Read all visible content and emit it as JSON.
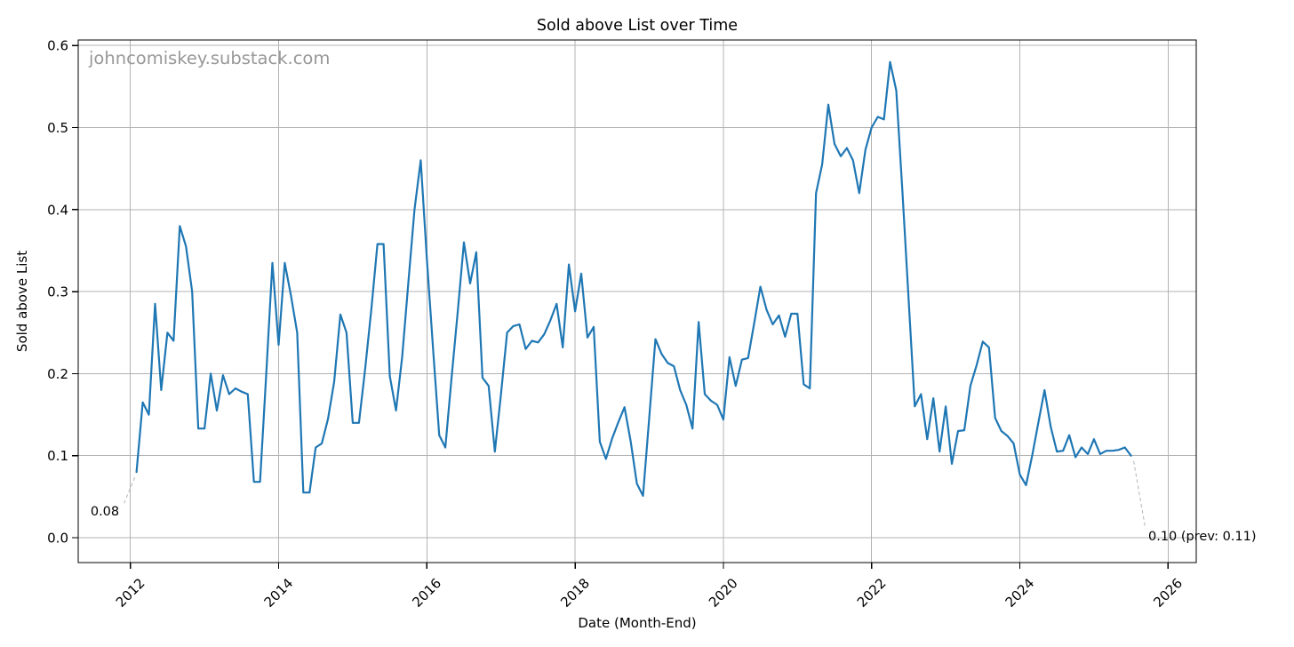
{
  "chart_data": {
    "type": "line",
    "title": "Sold above List over Time",
    "xlabel": "Date (Month-End)",
    "ylabel": "Sold above List",
    "watermark": "johncomiskey.substack.com",
    "grid": true,
    "legend": null,
    "x_tick_labels": [
      "2012",
      "2014",
      "2016",
      "2018",
      "2020",
      "2022",
      "2024",
      "2026"
    ],
    "x_ticks_years": [
      2012,
      2014,
      2016,
      2018,
      2020,
      2022,
      2024,
      2026
    ],
    "y_tick_labels": [
      "0.0",
      "0.1",
      "0.2",
      "0.3",
      "0.4",
      "0.5",
      "0.6"
    ],
    "y_ticks": [
      0.0,
      0.1,
      0.2,
      0.3,
      0.4,
      0.5,
      0.6
    ],
    "xlim_years": [
      2011.3,
      2026.4
    ],
    "ylim": [
      -0.03,
      0.607
    ],
    "series": [
      {
        "name": "Sold above List",
        "color": "#1f77b4",
        "start_month": "2012-01",
        "frequency": "monthly",
        "values": [
          0.08,
          0.165,
          0.15,
          0.285,
          0.18,
          0.25,
          0.24,
          0.38,
          0.355,
          0.3,
          0.133,
          0.133,
          0.2,
          0.155,
          0.198,
          0.175,
          0.182,
          0.178,
          0.175,
          0.068,
          0.068,
          0.2,
          0.335,
          0.235,
          0.335,
          0.295,
          0.25,
          0.055,
          0.055,
          0.11,
          0.115,
          0.145,
          0.19,
          0.272,
          0.25,
          0.14,
          0.14,
          0.205,
          0.278,
          0.358,
          0.358,
          0.197,
          0.155,
          0.22,
          0.31,
          0.4,
          0.46,
          0.34,
          0.23,
          0.125,
          0.11,
          0.195,
          0.275,
          0.36,
          0.31,
          0.348,
          0.195,
          0.185,
          0.105,
          0.175,
          0.25,
          0.258,
          0.26,
          0.23,
          0.24,
          0.238,
          0.248,
          0.265,
          0.285,
          0.232,
          0.333,
          0.276,
          0.322,
          0.244,
          0.257,
          0.117,
          0.096,
          0.121,
          0.141,
          0.159,
          0.117,
          0.066,
          0.051,
          0.146,
          0.242,
          0.224,
          0.213,
          0.209,
          0.18,
          0.162,
          0.133,
          0.263,
          0.175,
          0.167,
          0.162,
          0.144,
          0.22,
          0.185,
          0.217,
          0.219,
          0.262,
          0.306,
          0.278,
          0.26,
          0.271,
          0.245,
          0.273,
          0.273,
          0.187,
          0.182,
          0.42,
          0.455,
          0.528,
          0.48,
          0.465,
          0.475,
          0.46,
          0.42,
          0.473,
          0.5,
          0.513,
          0.51,
          0.58,
          0.545,
          0.42,
          0.29,
          0.16,
          0.175,
          0.12,
          0.17,
          0.105,
          0.16,
          0.09,
          0.13,
          0.131,
          0.185,
          0.21,
          0.239,
          0.232,
          0.146,
          0.13,
          0.124,
          0.115,
          0.077,
          0.064,
          0.1,
          0.14,
          0.18,
          0.135,
          0.105,
          0.106,
          0.125,
          0.098,
          0.11,
          0.102,
          0.12,
          0.102,
          0.106,
          0.106,
          0.107,
          0.11,
          0.1
        ]
      }
    ],
    "annotations": [
      {
        "text": "0.08",
        "target_month": "2012-01",
        "target_value": 0.08
      },
      {
        "text": "0.10 (prev: 0.11)",
        "target_month": "2025-06",
        "target_value": 0.1,
        "prev_value": 0.11
      }
    ],
    "colors": {
      "line": "#1f77b4",
      "grid": "#b3b3b3",
      "spine": "#000000",
      "tick_text": "#000000",
      "watermark": "#989898",
      "connector": "#bbbbbb"
    }
  }
}
